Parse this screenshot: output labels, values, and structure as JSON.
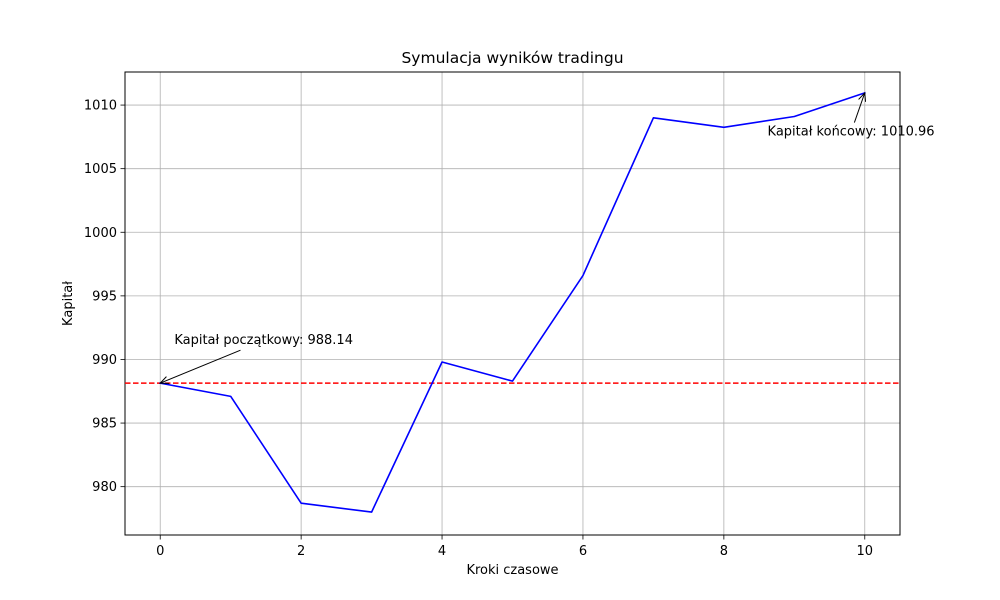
{
  "chart_data": {
    "type": "line",
    "title": "Symulacja wyników tradingu",
    "xlabel": "Kroki czasowe",
    "ylabel": "Kapitał",
    "xlim": [
      -0.5,
      10.5
    ],
    "ylim": [
      976.2,
      1012.6
    ],
    "xticks": [
      0,
      2,
      4,
      6,
      8,
      10
    ],
    "yticks": [
      980,
      985,
      990,
      995,
      1000,
      1005,
      1010
    ],
    "grid": true,
    "series": [
      {
        "color": "#0000ff",
        "x": [
          0,
          1,
          2,
          3,
          4,
          5,
          6,
          7,
          8,
          9,
          10
        ],
        "y": [
          988.14,
          987.1,
          978.7,
          978.0,
          989.8,
          988.3,
          996.6,
          1009.0,
          1008.25,
          1009.1,
          1010.96
        ]
      }
    ],
    "reference_line": {
      "y": 988.14,
      "color": "#ff0000",
      "style": "dashed"
    },
    "annotations": [
      {
        "text": "Kapitał początkowy: 988.14",
        "point": {
          "x": 0,
          "y": 988.14
        },
        "text_at": {
          "x": 0.2,
          "y": 991.2
        }
      },
      {
        "text": "Kapitał końcowy: 1010.96",
        "point": {
          "x": 10,
          "y": 1010.96
        },
        "text_at": {
          "x": 8.62,
          "y": 1007.6
        }
      }
    ]
  }
}
